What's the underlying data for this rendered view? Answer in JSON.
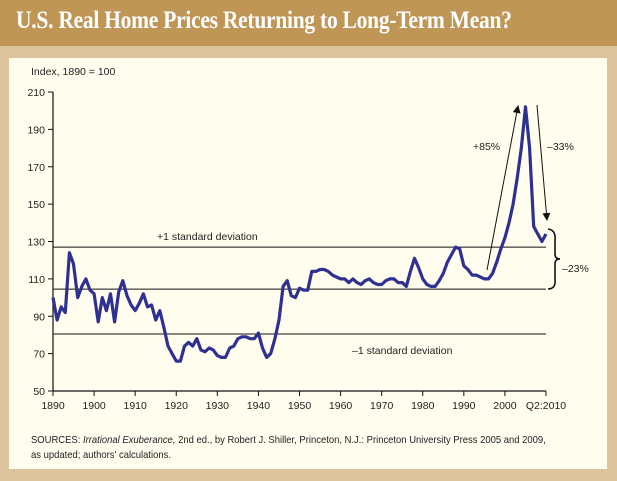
{
  "title": "U.S. Real Home Prices Returning to Long-Term Mean?",
  "sources": {
    "prefix": "SOURCES: ",
    "book": "Irrational Exuberance,",
    "rest_line1": " 2nd ed., by Robert J. Shiller,  Princeton, N.J.: Princeton University Press 2005 and 2009,",
    "line2": "as updated; authors' calculations."
  },
  "chart_data": {
    "type": "line",
    "title": "U.S. Real Home Prices Returning to Long-Term Mean?",
    "ylabel": "Index, 1890 = 100",
    "xlabel": "",
    "xlim": [
      1890,
      2010
    ],
    "ylim": [
      50,
      210
    ],
    "x_ticks": [
      1890,
      1900,
      1910,
      1920,
      1930,
      1940,
      1950,
      1960,
      1970,
      1980,
      1990,
      2000,
      2010
    ],
    "x_tick_labels": [
      "1890",
      "1900",
      "1910",
      "1920",
      "1930",
      "1940",
      "1950",
      "1960",
      "1970",
      "1980",
      "1990",
      "2000",
      "Q2:2010"
    ],
    "y_ticks": [
      50,
      70,
      90,
      110,
      130,
      150,
      170,
      190,
      210
    ],
    "y_tick_labels": [
      "50",
      "70",
      "90",
      "110",
      "130",
      "150",
      "170",
      "190",
      "210"
    ],
    "grid": false,
    "line_color": "#2e3192",
    "reference_lines": [
      {
        "value": 127,
        "label": "+1 standard deviation"
      },
      {
        "value": 104.5,
        "label": ""
      },
      {
        "value": 80.5,
        "label": "–1 standard deviation"
      }
    ],
    "annotations": {
      "rise": "+85%",
      "fall": "–33%",
      "remaining": "–23%"
    },
    "x": [
      1890,
      1891,
      1892,
      1893,
      1894,
      1895,
      1896,
      1897,
      1898,
      1899,
      1900,
      1901,
      1902,
      1903,
      1904,
      1905,
      1906,
      1907,
      1908,
      1909,
      1910,
      1911,
      1912,
      1913,
      1914,
      1915,
      1916,
      1917,
      1918,
      1919,
      1920,
      1921,
      1922,
      1923,
      1924,
      1925,
      1926,
      1927,
      1928,
      1929,
      1930,
      1931,
      1932,
      1933,
      1934,
      1935,
      1936,
      1937,
      1938,
      1939,
      1940,
      1941,
      1942,
      1943,
      1944,
      1945,
      1946,
      1947,
      1948,
      1949,
      1950,
      1951,
      1952,
      1953,
      1954,
      1955,
      1956,
      1957,
      1958,
      1959,
      1960,
      1961,
      1962,
      1963,
      1964,
      1965,
      1966,
      1967,
      1968,
      1969,
      1970,
      1971,
      1972,
      1973,
      1974,
      1975,
      1976,
      1977,
      1978,
      1979,
      1980,
      1981,
      1982,
      1983,
      1984,
      1985,
      1986,
      1987,
      1988,
      1989,
      1990,
      1991,
      1992,
      1993,
      1994,
      1995,
      1996,
      1997,
      1998,
      1999,
      2000,
      2001,
      2002,
      2003,
      2004,
      2005,
      2006,
      2007,
      2008,
      2009,
      2010
    ],
    "values": [
      100,
      88,
      95,
      92,
      124,
      118,
      100,
      106,
      110,
      104,
      102,
      87,
      100,
      93,
      102,
      87,
      103,
      109,
      101,
      96,
      93,
      97,
      102,
      95,
      96,
      88,
      93,
      84,
      74,
      70,
      66,
      66,
      74,
      76,
      74,
      78,
      72,
      71,
      73,
      72,
      69,
      68,
      68,
      73,
      74,
      78,
      79,
      79,
      78,
      78,
      81,
      73,
      68,
      70,
      78,
      88,
      106,
      109,
      101,
      100,
      105,
      104,
      104,
      114,
      114,
      115,
      115,
      114,
      112,
      111,
      110,
      110,
      108,
      110,
      108,
      107,
      109,
      110,
      108,
      107,
      107,
      109,
      110,
      110,
      108,
      108,
      106,
      114,
      121,
      116,
      110,
      107,
      106,
      106,
      109,
      113,
      119,
      123,
      127,
      126,
      117,
      115,
      112,
      112,
      111,
      110,
      110,
      113,
      119,
      126,
      132,
      140,
      150,
      164,
      180,
      202,
      180,
      138,
      134,
      130,
      134
    ]
  }
}
